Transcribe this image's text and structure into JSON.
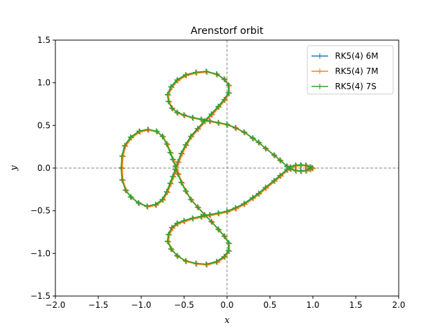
{
  "chart_data": {
    "type": "line",
    "title": "Arenstorf orbit",
    "xlabel": "x",
    "ylabel": "y",
    "xlim": [
      -2.0,
      2.0
    ],
    "ylim": [
      -1.5,
      1.5
    ],
    "xticks": [
      -2.0,
      -1.5,
      -1.0,
      -0.5,
      0.0,
      0.5,
      1.0,
      1.5,
      2.0
    ],
    "yticks": [
      -1.5,
      -1.0,
      -0.5,
      0.0,
      0.5,
      1.0,
      1.5
    ],
    "xtick_labels": [
      "−2.0",
      "−1.5",
      "−1.0",
      "−0.5",
      "0.0",
      "0.5",
      "1.0",
      "1.5",
      "2.0"
    ],
    "ytick_labels": [
      "−1.5",
      "−1.0",
      "−0.5",
      "0.0",
      "0.5",
      "1.0",
      "1.5"
    ],
    "reference_lines": {
      "x": 0,
      "y": 0,
      "style": "dashed",
      "color": "#808080"
    },
    "legend": {
      "placement": "top-right"
    },
    "series": [
      {
        "name": "RK5(4) 6M",
        "color": "#1f77b4",
        "marker": "+"
      },
      {
        "name": "RK5(4) 7M",
        "color": "#ff7f0e",
        "marker": "+"
      },
      {
        "name": "RK5(4) 7S",
        "color": "#2ca02c",
        "marker": "+"
      }
    ],
    "path": [
      [
        0.994,
        0.0
      ],
      [
        0.97,
        0.012
      ],
      [
        0.92,
        0.03
      ],
      [
        0.86,
        0.035
      ],
      [
        0.8,
        0.03
      ],
      [
        0.74,
        0.01
      ],
      [
        0.7,
        -0.02
      ],
      [
        0.62,
        -0.09
      ],
      [
        0.55,
        -0.15
      ],
      [
        0.45,
        -0.23
      ],
      [
        0.37,
        -0.3
      ],
      [
        0.3,
        -0.35
      ],
      [
        0.2,
        -0.42
      ],
      [
        0.1,
        -0.47
      ],
      [
        0.0,
        -0.51
      ],
      [
        -0.1,
        -0.53
      ],
      [
        -0.2,
        -0.55
      ],
      [
        -0.3,
        -0.57
      ],
      [
        -0.4,
        -0.59
      ],
      [
        -0.5,
        -0.62
      ],
      [
        -0.58,
        -0.65
      ],
      [
        -0.64,
        -0.7
      ],
      [
        -0.68,
        -0.78
      ],
      [
        -0.69,
        -0.86
      ],
      [
        -0.65,
        -0.95
      ],
      [
        -0.58,
        -1.03
      ],
      [
        -0.48,
        -1.09
      ],
      [
        -0.36,
        -1.12
      ],
      [
        -0.24,
        -1.13
      ],
      [
        -0.12,
        -1.1
      ],
      [
        -0.03,
        -1.04
      ],
      [
        0.02,
        -0.97
      ],
      [
        0.02,
        -0.88
      ],
      [
        -0.03,
        -0.8
      ],
      [
        -0.1,
        -0.72
      ],
      [
        -0.18,
        -0.63
      ],
      [
        -0.26,
        -0.55
      ],
      [
        -0.34,
        -0.46
      ],
      [
        -0.42,
        -0.37
      ],
      [
        -0.48,
        -0.27
      ],
      [
        -0.53,
        -0.17
      ],
      [
        -0.57,
        -0.07
      ],
      [
        -0.6,
        0.02
      ],
      [
        -0.63,
        0.1
      ],
      [
        -0.66,
        0.18
      ],
      [
        -0.7,
        0.28
      ],
      [
        -0.75,
        0.37
      ],
      [
        -0.82,
        0.43
      ],
      [
        -0.92,
        0.45
      ],
      [
        -1.02,
        0.43
      ],
      [
        -1.12,
        0.36
      ],
      [
        -1.19,
        0.26
      ],
      [
        -1.22,
        0.14
      ],
      [
        -1.23,
        0.0
      ],
      [
        -1.22,
        -0.14
      ],
      [
        -1.18,
        -0.26
      ],
      [
        -1.12,
        -0.34
      ],
      [
        -1.03,
        -0.41
      ],
      [
        -0.93,
        -0.45
      ],
      [
        -0.83,
        -0.43
      ],
      [
        -0.75,
        -0.37
      ],
      [
        -0.7,
        -0.28
      ],
      [
        -0.66,
        -0.18
      ],
      [
        -0.63,
        -0.1
      ],
      [
        -0.6,
        -0.02
      ],
      [
        -0.57,
        0.07
      ],
      [
        -0.53,
        0.17
      ],
      [
        -0.48,
        0.27
      ],
      [
        -0.42,
        0.37
      ],
      [
        -0.34,
        0.46
      ],
      [
        -0.26,
        0.55
      ],
      [
        -0.18,
        0.63
      ],
      [
        -0.1,
        0.72
      ],
      [
        -0.03,
        0.8
      ],
      [
        0.02,
        0.88
      ],
      [
        0.02,
        0.97
      ],
      [
        -0.03,
        1.04
      ],
      [
        -0.12,
        1.1
      ],
      [
        -0.24,
        1.13
      ],
      [
        -0.36,
        1.12
      ],
      [
        -0.48,
        1.09
      ],
      [
        -0.58,
        1.03
      ],
      [
        -0.65,
        0.95
      ],
      [
        -0.69,
        0.86
      ],
      [
        -0.68,
        0.78
      ],
      [
        -0.64,
        0.7
      ],
      [
        -0.58,
        0.65
      ],
      [
        -0.5,
        0.62
      ],
      [
        -0.4,
        0.59
      ],
      [
        -0.3,
        0.57
      ],
      [
        -0.2,
        0.55
      ],
      [
        -0.1,
        0.53
      ],
      [
        0.0,
        0.51
      ],
      [
        0.1,
        0.47
      ],
      [
        0.2,
        0.42
      ],
      [
        0.3,
        0.35
      ],
      [
        0.37,
        0.3
      ],
      [
        0.45,
        0.23
      ],
      [
        0.55,
        0.15
      ],
      [
        0.62,
        0.09
      ],
      [
        0.7,
        0.02
      ],
      [
        0.74,
        -0.01
      ],
      [
        0.8,
        -0.03
      ],
      [
        0.86,
        -0.035
      ],
      [
        0.92,
        -0.03
      ],
      [
        0.97,
        -0.012
      ],
      [
        0.994,
        0.0
      ]
    ]
  }
}
